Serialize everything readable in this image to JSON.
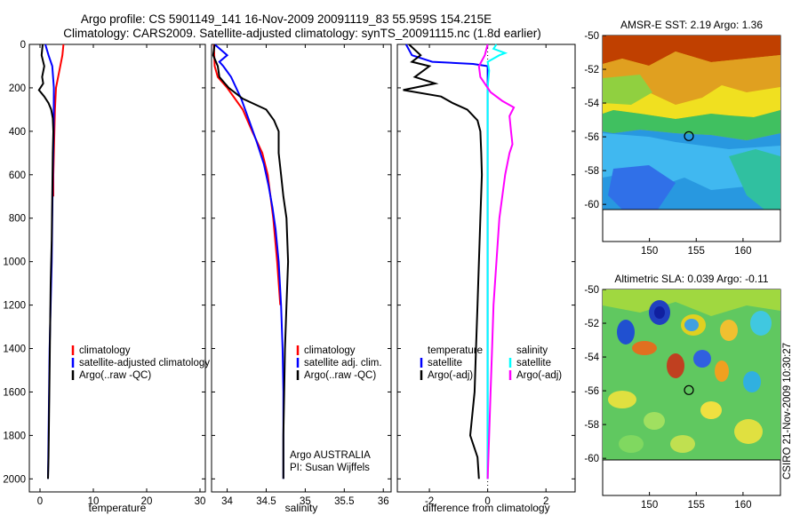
{
  "title_line1": "Argo profile: CS 5901149_141 16-Nov-2009 20091119_83 55.959S 154.215E",
  "title_line2": "Climatology: CARS2009. Satellite-adjusted climatology: synTS_20091115.nc (1.8d earlier)",
  "vertical_credit": "CSIRO 21-Nov-2009 10:30:27",
  "colors": {
    "climatology": "#ff0000",
    "satellite": "#0000ff",
    "argo": "#000000",
    "salinity_satellite": "#00ffff",
    "salinity_argo": "#ff00ff"
  },
  "chart_data": [
    {
      "type": "line",
      "xlabel": "temperature",
      "ylabel": "",
      "xlim": [
        -2,
        31
      ],
      "ylim": [
        2060,
        0
      ],
      "xticks": [
        "0",
        "10",
        "20",
        "30"
      ],
      "yticks": [
        "0",
        "200",
        "400",
        "600",
        "800",
        "1000",
        "1200",
        "1400",
        "1600",
        "1800",
        "2000"
      ],
      "legend": [
        {
          "label": "climatology",
          "color": "#ff0000"
        },
        {
          "label": "satellite-adjusted climatology",
          "color": "#0000ff"
        },
        {
          "label": "Argo(..raw -QC)",
          "color": "#000000"
        }
      ],
      "series": [
        {
          "name": "climatology",
          "color": "#ff0000",
          "points": [
            [
              4.4,
              0
            ],
            [
              4.2,
              50
            ],
            [
              3.8,
              100
            ],
            [
              3.0,
              200
            ],
            [
              2.8,
              300
            ],
            [
              2.7,
              400
            ],
            [
              2.6,
              500
            ],
            [
              2.5,
              600
            ],
            [
              2.5,
              700
            ]
          ]
        },
        {
          "name": "satellite-adjusted climatology",
          "color": "#0000ff",
          "points": [
            [
              1.0,
              0
            ],
            [
              1.6,
              50
            ],
            [
              2.3,
              100
            ],
            [
              2.6,
              200
            ],
            [
              2.55,
              400
            ],
            [
              2.4,
              600
            ],
            [
              2.3,
              800
            ],
            [
              2.2,
              1000
            ],
            [
              2.0,
              1200
            ],
            [
              1.8,
              1400
            ],
            [
              1.7,
              1600
            ],
            [
              1.6,
              1800
            ],
            [
              1.5,
              2000
            ]
          ]
        },
        {
          "name": "Argo(..raw -QC)",
          "color": "#000000",
          "points": [
            [
              0.5,
              0
            ],
            [
              0.3,
              50
            ],
            [
              0.8,
              100
            ],
            [
              0.4,
              150
            ],
            [
              0.6,
              180
            ],
            [
              -0.2,
              210
            ],
            [
              0.8,
              240
            ],
            [
              1.6,
              270
            ],
            [
              2.1,
              300
            ],
            [
              2.4,
              340
            ],
            [
              2.5,
              400
            ],
            [
              2.4,
              500
            ],
            [
              2.3,
              700
            ],
            [
              2.2,
              900
            ],
            [
              2.0,
              1100
            ],
            [
              1.9,
              1300
            ],
            [
              1.8,
              1500
            ],
            [
              1.7,
              1700
            ],
            [
              1.6,
              1900
            ],
            [
              1.5,
              2000
            ]
          ]
        }
      ]
    },
    {
      "type": "line",
      "xlabel": "salinity",
      "ylabel": "",
      "xlim": [
        33.8,
        36.1
      ],
      "ylim": [
        2060,
        0
      ],
      "xticks": [
        "34",
        "34.5",
        "35",
        "35.5",
        "36"
      ],
      "legend": [
        {
          "label": "climatology",
          "color": "#ff0000"
        },
        {
          "label": "satellite adj. clim.",
          "color": "#0000ff"
        },
        {
          "label": "Argo(..raw -QC)",
          "color": "#000000"
        }
      ],
      "annotations": [
        "Argo AUSTRALIA",
        "PI: Susan Wijffels"
      ],
      "series": [
        {
          "name": "climatology",
          "color": "#ff0000",
          "points": [
            [
              33.83,
              0
            ],
            [
              33.84,
              100
            ],
            [
              33.88,
              150
            ],
            [
              34.0,
              200
            ],
            [
              34.2,
              300
            ],
            [
              34.32,
              400
            ],
            [
              34.45,
              500
            ],
            [
              34.52,
              600
            ],
            [
              34.59,
              800
            ],
            [
              34.64,
              1000
            ],
            [
              34.68,
              1200
            ]
          ]
        },
        {
          "name": "satellite adj. clim.",
          "color": "#0000ff",
          "points": [
            [
              33.84,
              0
            ],
            [
              34.0,
              50
            ],
            [
              33.9,
              80
            ],
            [
              33.95,
              100
            ],
            [
              34.05,
              150
            ],
            [
              34.18,
              250
            ],
            [
              34.28,
              350
            ],
            [
              34.38,
              450
            ],
            [
              34.47,
              550
            ],
            [
              34.53,
              650
            ],
            [
              34.58,
              750
            ],
            [
              34.62,
              850
            ],
            [
              34.66,
              1000
            ],
            [
              34.69,
              1200
            ],
            [
              34.71,
              1400
            ],
            [
              34.72,
              1600
            ],
            [
              34.72,
              1800
            ],
            [
              34.72,
              2000
            ]
          ]
        },
        {
          "name": "Argo(..raw -QC)",
          "color": "#000000",
          "points": [
            [
              33.84,
              0
            ],
            [
              33.82,
              50
            ],
            [
              33.88,
              100
            ],
            [
              33.9,
              150
            ],
            [
              34.02,
              200
            ],
            [
              34.2,
              250
            ],
            [
              34.5,
              300
            ],
            [
              34.6,
              350
            ],
            [
              34.66,
              400
            ],
            [
              34.66,
              500
            ],
            [
              34.69,
              600
            ],
            [
              34.72,
              700
            ],
            [
              34.76,
              800
            ],
            [
              34.77,
              900
            ],
            [
              34.78,
              1000
            ],
            [
              34.76,
              1200
            ],
            [
              34.74,
              1400
            ],
            [
              34.73,
              1600
            ],
            [
              34.72,
              1800
            ],
            [
              34.72,
              2000
            ]
          ]
        }
      ]
    },
    {
      "type": "line",
      "xlabel": "difference from climatology",
      "ylabel": "",
      "xlim": [
        -3.1,
        3.0
      ],
      "ylim": [
        2060,
        0
      ],
      "xticks": [
        "-2",
        "0",
        "2"
      ],
      "legend": [
        {
          "label": "temperature",
          "color": ""
        },
        {
          "label": "satellite",
          "color": "#0000ff"
        },
        {
          "label": "Argo(-adj)",
          "color": "#000000"
        },
        {
          "label": "salinity",
          "color": ""
        },
        {
          "label": "satellite",
          "color": "#00ffff"
        },
        {
          "label": "Argo(-adj)",
          "color": "#ff00ff"
        }
      ],
      "series": [
        {
          "name": "temperature satellite",
          "color": "#0000ff",
          "points": [
            [
              -2.8,
              0
            ],
            [
              -2.6,
              50
            ],
            [
              -1.9,
              80
            ],
            [
              -0.5,
              90
            ],
            [
              0.0,
              100
            ],
            [
              0.0,
              2000
            ]
          ]
        },
        {
          "name": "temperature Argo(-adj)",
          "color": "#000000",
          "points": [
            [
              -2.7,
              0
            ],
            [
              -2.3,
              50
            ],
            [
              -2.6,
              80
            ],
            [
              -2.0,
              100
            ],
            [
              -2.5,
              150
            ],
            [
              -1.8,
              180
            ],
            [
              -2.9,
              210
            ],
            [
              -1.6,
              240
            ],
            [
              -1.2,
              270
            ],
            [
              -0.7,
              300
            ],
            [
              -0.35,
              350
            ],
            [
              -0.25,
              400
            ],
            [
              -0.22,
              500
            ],
            [
              -0.2,
              600
            ],
            [
              -0.25,
              800
            ],
            [
              -0.3,
              1000
            ],
            [
              -0.35,
              1200
            ],
            [
              -0.4,
              1400
            ],
            [
              -0.45,
              1600
            ],
            [
              -0.6,
              1800
            ],
            [
              -0.35,
              1900
            ],
            [
              -0.3,
              2000
            ]
          ]
        },
        {
          "name": "salinity satellite",
          "color": "#00ffff",
          "points": [
            [
              0.3,
              0
            ],
            [
              0.2,
              20
            ],
            [
              0.6,
              40
            ],
            [
              0.4,
              50
            ],
            [
              0.0,
              80
            ],
            [
              0.05,
              120
            ],
            [
              0.0,
              200
            ],
            [
              0.0,
              2000
            ]
          ]
        },
        {
          "name": "salinity Argo(-adj)",
          "color": "#ff00ff",
          "points": [
            [
              0.0,
              0
            ],
            [
              -0.1,
              50
            ],
            [
              -0.3,
              100
            ],
            [
              -0.25,
              150
            ],
            [
              0.1,
              220
            ],
            [
              0.5,
              260
            ],
            [
              0.9,
              290
            ],
            [
              0.75,
              330
            ],
            [
              0.8,
              400
            ],
            [
              0.85,
              460
            ],
            [
              0.75,
              500
            ],
            [
              0.6,
              600
            ],
            [
              0.4,
              800
            ],
            [
              0.3,
              1000
            ],
            [
              0.2,
              1200
            ],
            [
              0.15,
              1400
            ],
            [
              0.1,
              1600
            ],
            [
              0.05,
              1800
            ],
            [
              0.0,
              2000
            ]
          ]
        }
      ]
    },
    {
      "type": "heatmap",
      "title": "AMSR-E SST: 2.19 Argo: 1.36",
      "xlim": [
        145,
        164
      ],
      "ylim": [
        -62.2,
        -50
      ],
      "xticks": [
        "150",
        "155",
        "160"
      ],
      "yticks": [
        "-50",
        "-52",
        "-54",
        "-56",
        "-58",
        "-60"
      ],
      "marker": {
        "lon": 154.215,
        "lat": -55.959
      }
    },
    {
      "type": "heatmap",
      "title": "Altimetric SLA: 0.039 Argo: -0.11",
      "xlim": [
        145,
        164
      ],
      "ylim": [
        -62.2,
        -50
      ],
      "xticks": [
        "150",
        "155",
        "160"
      ],
      "yticks": [
        "-50",
        "-52",
        "-54",
        "-56",
        "-58",
        "-60"
      ],
      "marker": {
        "lon": 154.215,
        "lat": -55.959
      }
    }
  ]
}
